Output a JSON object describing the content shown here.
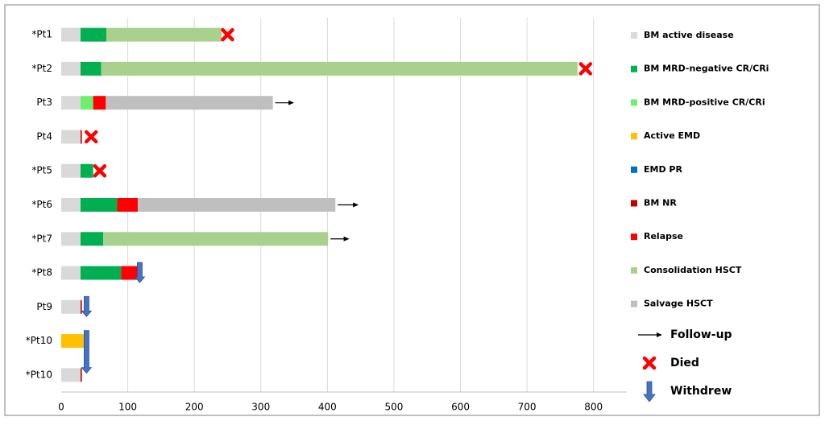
{
  "chart_data": {
    "type": "bar",
    "stacked": true,
    "horizontal": true,
    "categories": [
      "*Pt1",
      "*Pt2",
      "Pt3",
      "Pt4",
      "*Pt5",
      "*Pt6",
      "*Pt7",
      "*Pt8",
      "Pt9",
      "*Pt10",
      "*Pt10"
    ],
    "series": [
      {
        "name": "BM active disease",
        "color": "#d9d9d9",
        "values": [
          29,
          29,
          29,
          29,
          29,
          29,
          29,
          29,
          29,
          null,
          29
        ]
      },
      {
        "name": "BM MRD-negative CR/CRi",
        "color": "#00b050",
        "values": [
          39,
          31,
          null,
          null,
          19,
          55,
          34,
          61,
          null,
          null,
          null
        ]
      },
      {
        "name": "BM MRD-positive CR/CRi",
        "color": "#6ef06e",
        "values": [
          null,
          null,
          19,
          null,
          null,
          null,
          null,
          null,
          null,
          null,
          null
        ]
      },
      {
        "name": "Active EMD",
        "color": "#ffc000",
        "values": [
          null,
          null,
          null,
          null,
          null,
          null,
          null,
          null,
          null,
          36,
          null
        ]
      },
      {
        "name": "EMD PR",
        "color": "#0070c0",
        "values": [
          null,
          null,
          null,
          null,
          null,
          null,
          null,
          null,
          null,
          1,
          null
        ]
      },
      {
        "name": "BM NR",
        "color": "#c00000",
        "values": [
          null,
          null,
          null,
          2,
          null,
          null,
          null,
          null,
          2,
          null,
          2
        ]
      },
      {
        "name": "Relapse",
        "color": "#ff0000",
        "values": [
          null,
          null,
          19,
          null,
          null,
          31,
          null,
          25,
          null,
          null,
          null
        ]
      },
      {
        "name": "Consolidation HSCT",
        "color": "#a9d18e",
        "values": [
          173,
          716,
          null,
          null,
          null,
          null,
          338,
          null,
          null,
          null,
          null
        ]
      },
      {
        "name": "Salvage HSCT",
        "color": "#bfbfbf",
        "values": [
          null,
          null,
          251,
          null,
          null,
          297,
          null,
          null,
          null,
          null,
          null
        ]
      }
    ],
    "markers": [
      {
        "name": "Follow-up",
        "shape": "arrow-right",
        "color": "#000000",
        "values": [
          null,
          null,
          350,
          null,
          null,
          447,
          433,
          null,
          null,
          null,
          null
        ]
      },
      {
        "name": "Died",
        "shape": "cross",
        "color": "#ff0000",
        "values": [
          250,
          788,
          null,
          45,
          58,
          null,
          null,
          null,
          null,
          null,
          null
        ]
      },
      {
        "name": "Withdrew",
        "shape": "arrow-down",
        "color": "#4472c4",
        "values": [
          null,
          null,
          null,
          null,
          null,
          null,
          null,
          118,
          38,
          38,
          null
        ]
      }
    ],
    "xlim": [
      0,
      850
    ],
    "xticks": [
      0,
      100,
      200,
      300,
      400,
      500,
      600,
      700,
      800
    ],
    "grid": true
  }
}
